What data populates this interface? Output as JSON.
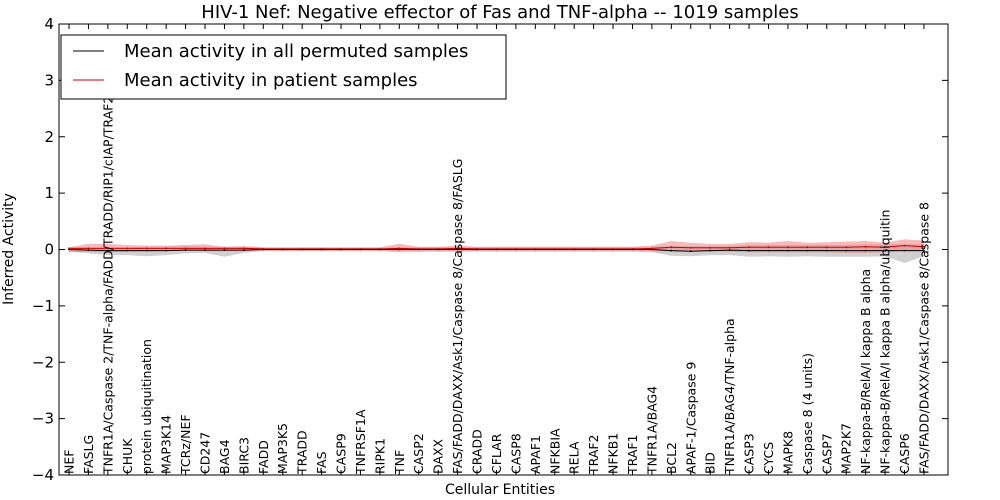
{
  "chart_data": {
    "type": "line",
    "title": "HIV-1 Nef: Negative effector of Fas and TNF-alpha -- 1019 samples",
    "xlabel": "Cellular Entities",
    "ylabel": "Inferred Activity",
    "ylim": [
      -4,
      4
    ],
    "yticks": [
      "−4",
      "−3",
      "−2",
      "−1",
      "0",
      "1",
      "2",
      "3",
      "4"
    ],
    "legend_position": "top-left",
    "categories": [
      "NEF",
      "FASLG",
      "TNFR1A/Caspase 2/TNF-alpha/FADD/TRADD/RIP1/cIAP/TRAF2",
      "CHUK",
      "protein ubiquitination",
      "MAP3K14",
      "TCRz/NEF",
      "CD247",
      "BAG4",
      "BIRC3",
      "FADD",
      "MAP3K5",
      "TRADD",
      "FAS",
      "CASP9",
      "TNFRSF1A",
      "RIPK1",
      "TNF",
      "CASP2",
      "DAXX",
      "FAS/FADD/DAXX/Ask1/Caspase 8/Caspase 8/FASLG",
      "CRADD",
      "CFLAR",
      "CASP8",
      "APAF1",
      "NFKBIA",
      "RELA",
      "TRAF2",
      "NFKB1",
      "TRAF1",
      "TNFR1A/BAG4",
      "BCL2",
      "APAF-1/Caspase 9",
      "BID",
      "TNFR1A/BAG4/TNF-alpha",
      "CASP3",
      "CYCS",
      "MAPK8",
      "Caspase 8 (4 units)",
      "CASP7",
      "MAP2K7",
      "NF-kappa-B/RelA/I kappa B alpha",
      "NF-kappa-B/RelA/I kappa B alpha/ubiquitin",
      "CASP6",
      "FAS/FADD/DAXX/Ask1/Caspase 8/Caspase 8"
    ],
    "series": [
      {
        "name": "Mean activity in all permuted samples",
        "color": "#000000",
        "band_color": "#b0b0b0",
        "values": [
          0,
          -0.01,
          -0.02,
          -0.02,
          -0.02,
          -0.02,
          -0.01,
          -0.01,
          -0.01,
          -0.01,
          0,
          0,
          0,
          0,
          0,
          0,
          0,
          0,
          0,
          0,
          0,
          0,
          0,
          0,
          0,
          0,
          0,
          0,
          0,
          0,
          0,
          -0.02,
          -0.03,
          -0.02,
          -0.01,
          -0.02,
          -0.02,
          -0.02,
          -0.02,
          -0.02,
          -0.02,
          -0.02,
          -0.02,
          -0.02,
          -0.02
        ],
        "lower": [
          -0.04,
          -0.07,
          -0.1,
          -0.1,
          -0.12,
          -0.1,
          -0.07,
          -0.06,
          -0.13,
          -0.06,
          -0.03,
          -0.03,
          -0.03,
          -0.03,
          -0.03,
          -0.03,
          -0.03,
          -0.05,
          -0.05,
          -0.04,
          -0.04,
          -0.04,
          -0.04,
          -0.04,
          -0.04,
          -0.04,
          -0.04,
          -0.04,
          -0.04,
          -0.04,
          -0.05,
          -0.11,
          -0.12,
          -0.1,
          -0.1,
          -0.13,
          -0.12,
          -0.13,
          -0.12,
          -0.13,
          -0.13,
          -0.13,
          -0.12,
          -0.24,
          -0.12
        ],
        "upper": [
          0.04,
          0.04,
          0.04,
          0.04,
          0.05,
          0.05,
          0.06,
          0.05,
          0.05,
          0.05,
          0.03,
          0.03,
          0.03,
          0.03,
          0.03,
          0.03,
          0.03,
          0.04,
          0.04,
          0.04,
          0.04,
          0.04,
          0.04,
          0.04,
          0.04,
          0.04,
          0.04,
          0.04,
          0.04,
          0.04,
          0.05,
          0.06,
          0.06,
          0.06,
          0.06,
          0.08,
          0.08,
          0.08,
          0.08,
          0.08,
          0.08,
          0.09,
          0.09,
          0.1,
          0.09
        ]
      },
      {
        "name": "Mean activity in patient samples",
        "color": "#cc0000",
        "band_color": "#f08080",
        "values": [
          0.02,
          0.02,
          0.02,
          0.02,
          0.02,
          0.02,
          0.02,
          0.02,
          0.02,
          0.02,
          0.01,
          0.01,
          0.01,
          0.01,
          0.01,
          0.01,
          0.01,
          0.02,
          0.01,
          0.01,
          0.02,
          0.01,
          0.01,
          0.01,
          0.01,
          0.01,
          0.01,
          0.01,
          0.01,
          0.01,
          0.02,
          0.04,
          0.03,
          0.03,
          0.03,
          0.04,
          0.04,
          0.04,
          0.04,
          0.04,
          0.04,
          0.05,
          0.04,
          0.07,
          0.05
        ],
        "lower": [
          -0.05,
          -0.04,
          -0.05,
          -0.04,
          -0.04,
          -0.03,
          -0.02,
          -0.03,
          -0.03,
          -0.03,
          -0.02,
          -0.02,
          -0.02,
          -0.02,
          -0.02,
          -0.02,
          -0.02,
          -0.03,
          -0.02,
          -0.02,
          -0.03,
          -0.02,
          -0.02,
          -0.02,
          -0.02,
          -0.02,
          -0.02,
          -0.02,
          -0.02,
          -0.02,
          -0.03,
          -0.04,
          -0.04,
          -0.04,
          -0.04,
          -0.05,
          -0.05,
          -0.05,
          -0.05,
          -0.05,
          -0.06,
          -0.06,
          -0.05,
          -0.03,
          -0.04
        ],
        "upper": [
          0.04,
          0.1,
          0.1,
          0.08,
          0.07,
          0.07,
          0.08,
          0.09,
          0.05,
          0.06,
          0.04,
          0.04,
          0.04,
          0.04,
          0.04,
          0.04,
          0.04,
          0.1,
          0.05,
          0.05,
          0.07,
          0.05,
          0.05,
          0.05,
          0.05,
          0.05,
          0.05,
          0.05,
          0.05,
          0.05,
          0.07,
          0.15,
          0.12,
          0.1,
          0.1,
          0.13,
          0.12,
          0.15,
          0.12,
          0.13,
          0.14,
          0.15,
          0.12,
          0.18,
          0.16
        ]
      }
    ]
  }
}
